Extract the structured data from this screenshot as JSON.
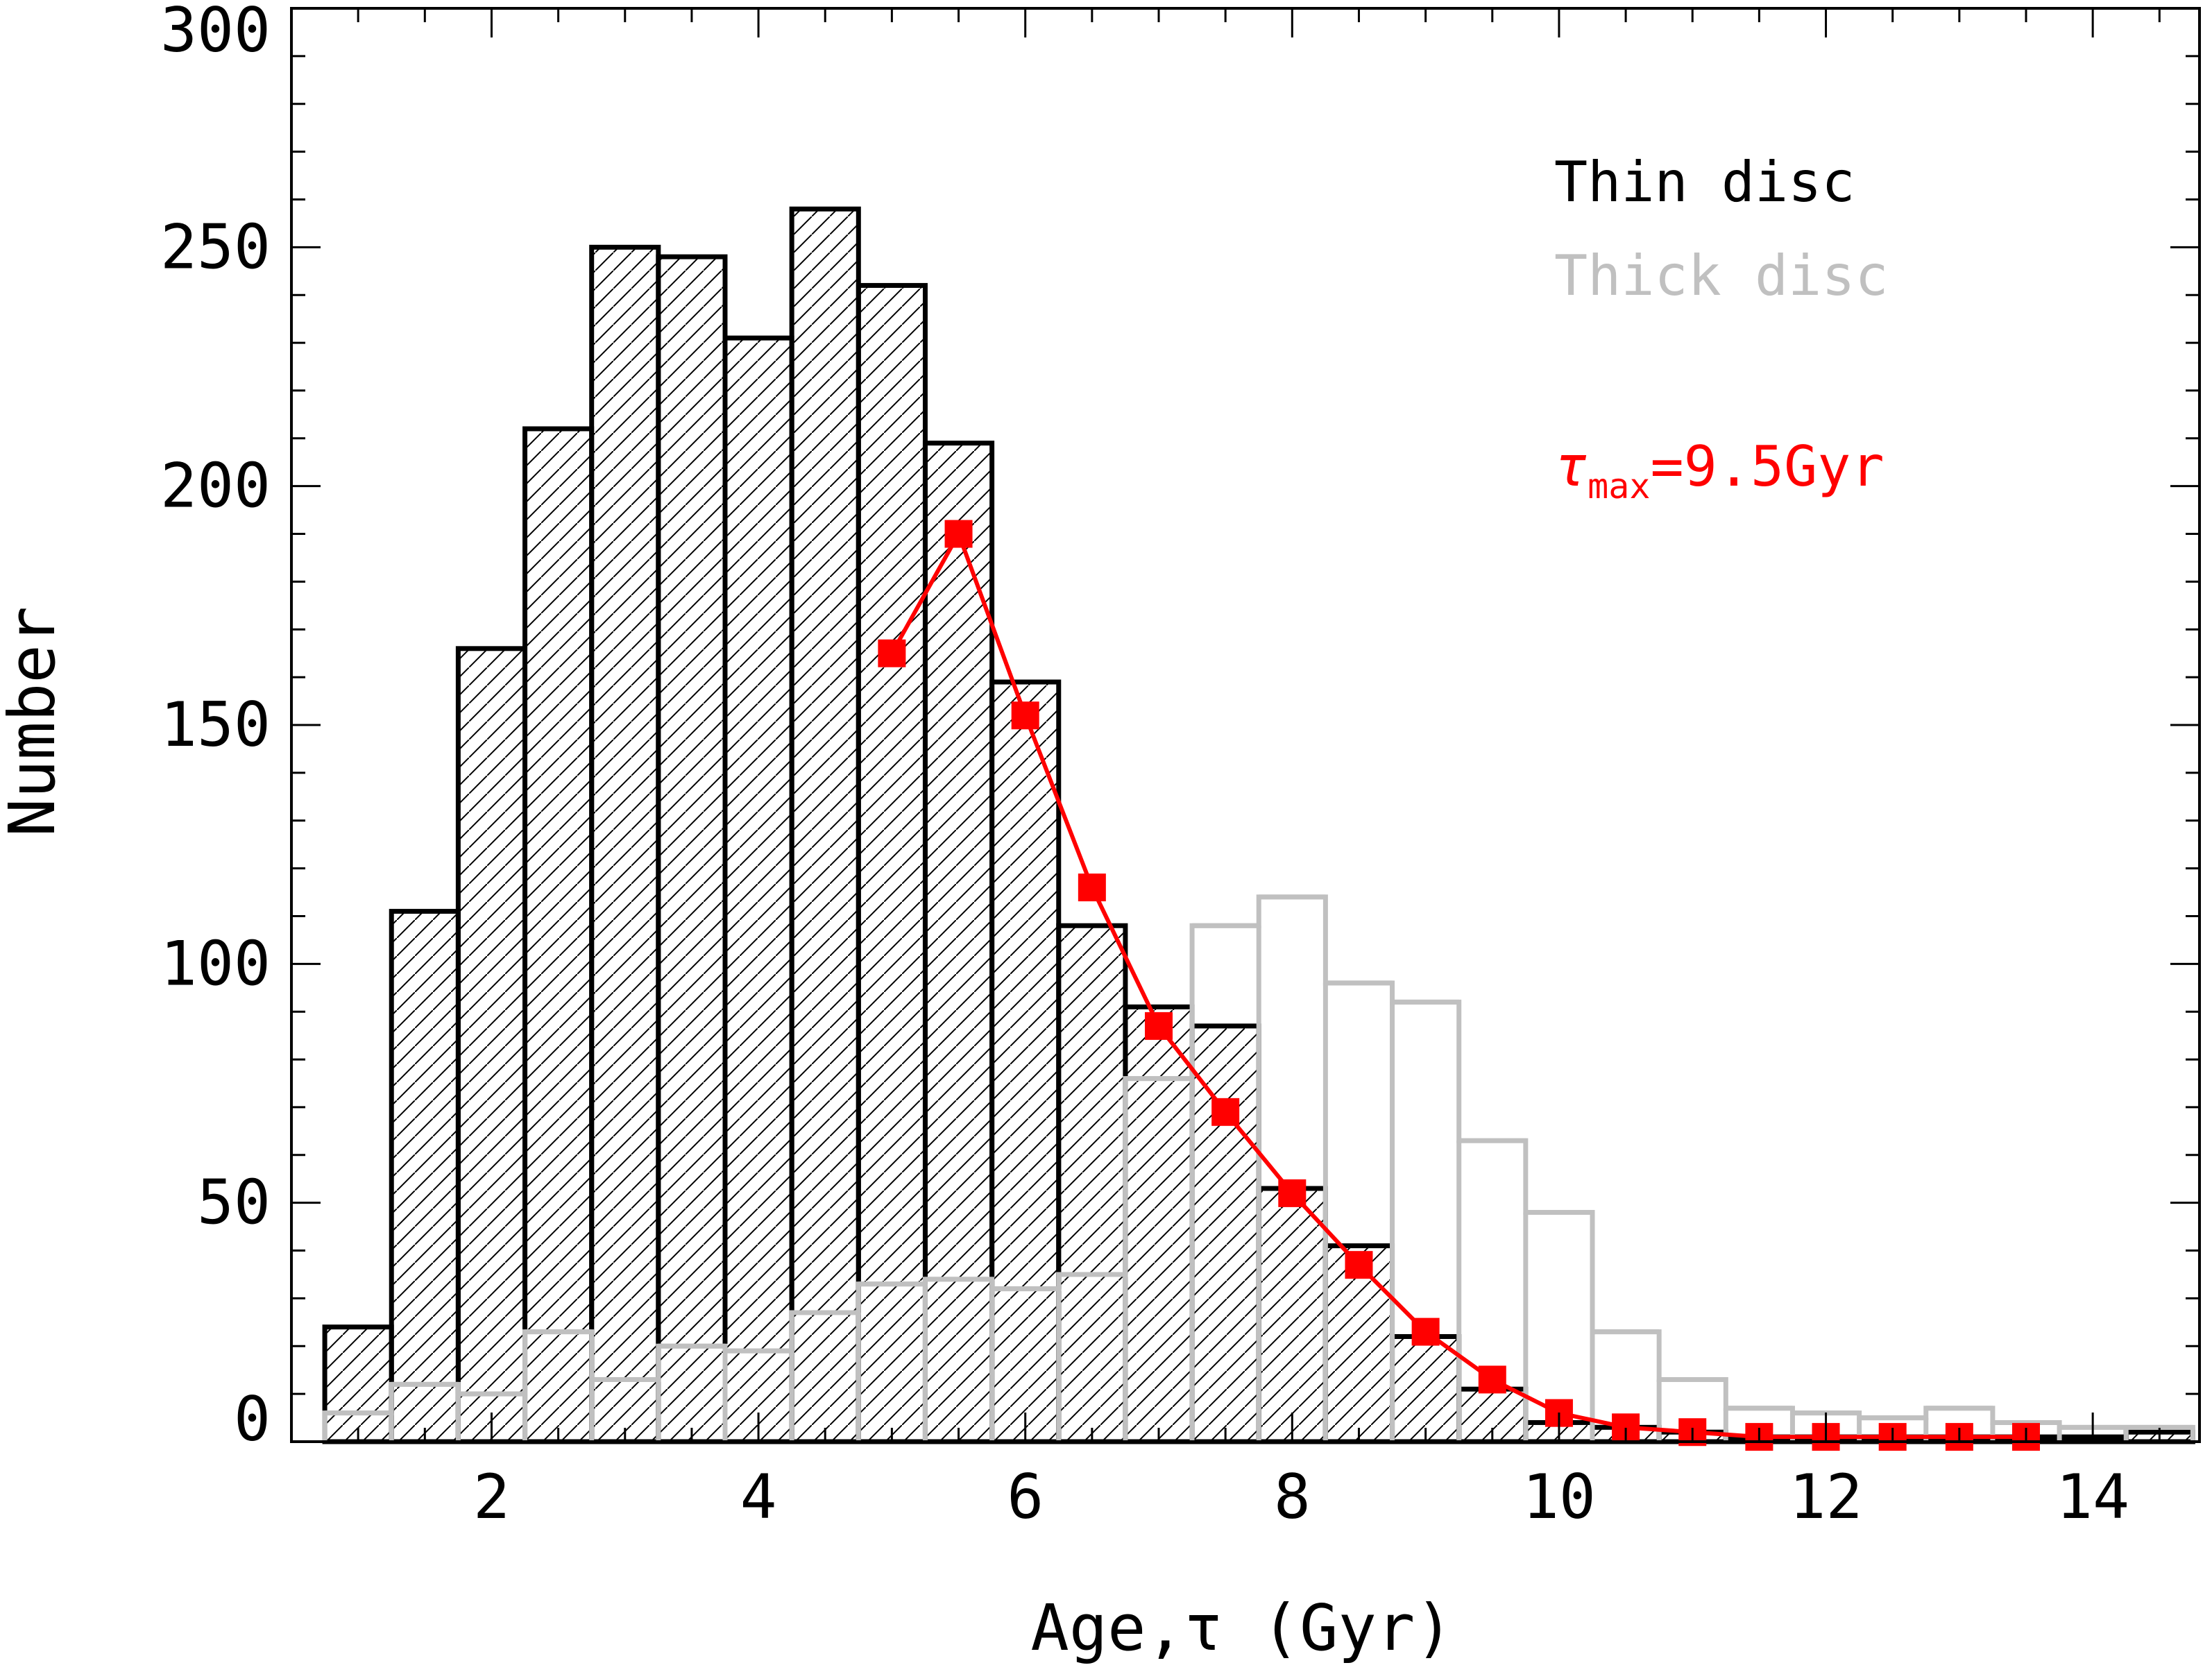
{
  "chart_data": {
    "type": "bar",
    "xlabel": "Age,τ (Gyr)",
    "ylabel": "Number",
    "xlim": [
      0.5,
      14.8
    ],
    "ylim": [
      0,
      300
    ],
    "x_ticks": [
      2,
      4,
      6,
      8,
      10,
      12,
      14
    ],
    "y_ticks": [
      0,
      50,
      100,
      150,
      200,
      250,
      300
    ],
    "bin_width": 0.5,
    "legend_position": "top-right",
    "colors": {
      "thin": "#000000",
      "thick": "#c0c0c0",
      "model": "#ff0000"
    },
    "series": [
      {
        "name": "Thin disc",
        "kind": "histogram",
        "bin_starts": [
          0.75,
          1.25,
          1.75,
          2.25,
          2.75,
          3.25,
          3.75,
          4.25,
          4.75,
          5.25,
          5.75,
          6.25,
          6.75,
          7.25,
          7.75,
          8.25,
          8.75,
          9.25,
          9.75,
          10.25,
          10.75,
          11.25,
          11.75,
          12.25,
          12.75,
          13.25,
          13.75,
          14.25
        ],
        "values": [
          24,
          111,
          166,
          212,
          250,
          248,
          231,
          258,
          242,
          209,
          159,
          108,
          91,
          87,
          53,
          41,
          22,
          11,
          4,
          3,
          2,
          1,
          1,
          1,
          1,
          1,
          1,
          2
        ]
      },
      {
        "name": "Thick disc",
        "kind": "histogram",
        "bin_starts": [
          0.75,
          1.25,
          1.75,
          2.25,
          2.75,
          3.25,
          3.75,
          4.25,
          4.75,
          5.25,
          5.75,
          6.25,
          6.75,
          7.25,
          7.75,
          8.25,
          8.75,
          9.25,
          9.75,
          10.25,
          10.75,
          11.25,
          11.75,
          12.25,
          12.75,
          13.25,
          13.75,
          14.25
        ],
        "values": [
          6,
          12,
          10,
          23,
          13,
          20,
          19,
          27,
          33,
          34,
          32,
          35,
          76,
          108,
          114,
          96,
          92,
          63,
          48,
          23,
          13,
          7,
          6,
          5,
          7,
          4,
          3,
          3
        ]
      },
      {
        "name": "τmax=9.5Gyr",
        "kind": "line",
        "x": [
          5.0,
          5.5,
          6.0,
          6.5,
          7.0,
          7.5,
          8.0,
          8.5,
          9.0,
          9.5,
          10.0,
          10.5,
          11.0,
          11.5,
          12.0,
          12.5,
          13.0,
          13.5
        ],
        "values": [
          165,
          190,
          152,
          116,
          87,
          69,
          52,
          37,
          23,
          13,
          6,
          3,
          2,
          1,
          1,
          1,
          1,
          1
        ]
      }
    ]
  },
  "legend": {
    "thin_label": "Thin disc",
    "thick_label": "Thick disc",
    "model_tau": "τ",
    "model_sub": "max",
    "model_value": "=9.5Gyr"
  }
}
